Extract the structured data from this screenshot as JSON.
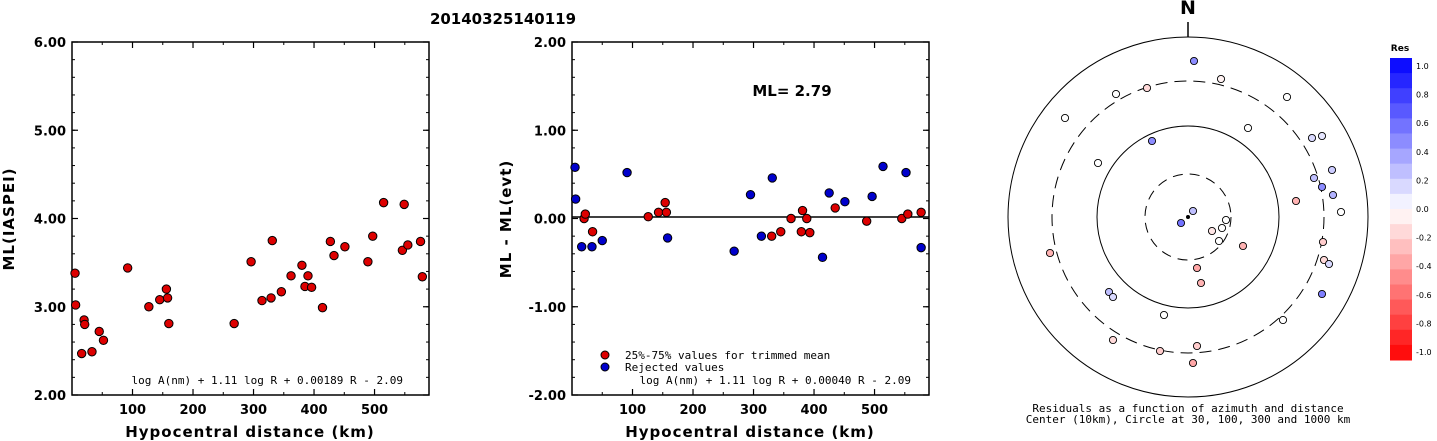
{
  "title": "20140325140119",
  "chart_data": [
    {
      "type": "scatter",
      "xlabel": "Hypocentral distance (km)",
      "ylabel": "ML(IASPEI)",
      "xlim": [
        0,
        590
      ],
      "ylim": [
        2.0,
        6.0
      ],
      "xticks": [
        "100",
        "200",
        "300",
        "400",
        "500"
      ],
      "yticks": [
        "2.00",
        "3.00",
        "4.00",
        "5.00",
        "6.00"
      ],
      "formula": "log A(nm) + 1.11 log R + 0.00189 R - 2.09",
      "points": [
        [
          5,
          3.38
        ],
        [
          6,
          3.02
        ],
        [
          16,
          2.47
        ],
        [
          20,
          2.85
        ],
        [
          21,
          2.8
        ],
        [
          33,
          2.49
        ],
        [
          45,
          2.72
        ],
        [
          52,
          2.62
        ],
        [
          92,
          3.44
        ],
        [
          127,
          3.0
        ],
        [
          145,
          3.08
        ],
        [
          156,
          3.2
        ],
        [
          158,
          3.1
        ],
        [
          160,
          2.81
        ],
        [
          268,
          2.81
        ],
        [
          296,
          3.51
        ],
        [
          314,
          3.07
        ],
        [
          329,
          3.1
        ],
        [
          331,
          3.75
        ],
        [
          346,
          3.17
        ],
        [
          362,
          3.35
        ],
        [
          380,
          3.47
        ],
        [
          385,
          3.23
        ],
        [
          390,
          3.35
        ],
        [
          396,
          3.22
        ],
        [
          414,
          2.99
        ],
        [
          427,
          3.74
        ],
        [
          433,
          3.58
        ],
        [
          451,
          3.68
        ],
        [
          489,
          3.51
        ],
        [
          497,
          3.8
        ],
        [
          515,
          4.18
        ],
        [
          546,
          3.64
        ],
        [
          549,
          4.16
        ],
        [
          555,
          3.7
        ],
        [
          576,
          3.74
        ],
        [
          579,
          3.34
        ]
      ]
    },
    {
      "type": "scatter",
      "xlabel": "Hypocentral distance (km)",
      "ylabel": "ML - ML(evt)",
      "xlim": [
        0,
        590
      ],
      "ylim": [
        -2.0,
        2.0
      ],
      "xticks": [
        "100",
        "200",
        "300",
        "400",
        "500"
      ],
      "yticks": [
        "-2.00",
        "-1.00",
        "0.00",
        "1.00",
        "2.00"
      ],
      "ml_label": "ML= 2.79",
      "formula": "log A(nm) + 1.11 log R + 0.00040 R - 2.09",
      "legend": [
        "25%-75% values for trimmed mean",
        "Rejected values"
      ],
      "series": [
        {
          "name": "25%-75% values for trimmed mean",
          "color": "#dd0000",
          "points": [
            [
              20,
              0.0
            ],
            [
              22,
              0.05
            ],
            [
              34,
              -0.15
            ],
            [
              126,
              0.02
            ],
            [
              143,
              0.07
            ],
            [
              154,
              0.18
            ],
            [
              156,
              0.07
            ],
            [
              330,
              -0.2
            ],
            [
              345,
              -0.15
            ],
            [
              362,
              0.0
            ],
            [
              379,
              -0.15
            ],
            [
              381,
              0.09
            ],
            [
              388,
              0.0
            ],
            [
              393,
              -0.16
            ],
            [
              435,
              0.12
            ],
            [
              487,
              -0.03
            ],
            [
              545,
              0.0
            ],
            [
              555,
              0.05
            ],
            [
              577,
              0.07
            ]
          ]
        },
        {
          "name": "Rejected values",
          "color": "#0000cc",
          "points": [
            [
              5,
              0.58
            ],
            [
              6,
              0.22
            ],
            [
              16,
              -0.32
            ],
            [
              33,
              -0.32
            ],
            [
              50,
              -0.25
            ],
            [
              91,
              0.52
            ],
            [
              158,
              -0.22
            ],
            [
              268,
              -0.37
            ],
            [
              295,
              0.27
            ],
            [
              313,
              -0.2
            ],
            [
              331,
              0.46
            ],
            [
              425,
              0.29
            ],
            [
              414,
              -0.44
            ],
            [
              451,
              0.19
            ],
            [
              496,
              0.25
            ],
            [
              514,
              0.59
            ],
            [
              552,
              0.52
            ],
            [
              577,
              -0.33
            ]
          ]
        }
      ]
    }
  ],
  "polar": {
    "north_label": "N",
    "caption_line1": "Residuals as a function of azimuth and distance",
    "caption_line2": "Center (10km), Circle at 30, 100, 300 and 1000 km",
    "stations": [
      [
        1194,
        61,
        0.45
      ],
      [
        1221,
        79,
        -0.05
      ],
      [
        1147,
        88,
        -0.15
      ],
      [
        1116,
        94,
        0.0
      ],
      [
        1287,
        97,
        0.0
      ],
      [
        1065,
        118,
        0.0
      ],
      [
        1248,
        128,
        0.0
      ],
      [
        1312,
        138,
        0.15
      ],
      [
        1322,
        136,
        0.1
      ],
      [
        1152,
        141,
        0.45
      ],
      [
        1098,
        163,
        0.0
      ],
      [
        1332,
        170,
        0.2
      ],
      [
        1314,
        178,
        0.25
      ],
      [
        1322,
        187,
        0.45
      ],
      [
        1333,
        195,
        0.3
      ],
      [
        1296,
        201,
        -0.3
      ],
      [
        1341,
        212,
        0.0
      ],
      [
        1193,
        211,
        0.25
      ],
      [
        1181,
        223,
        0.55
      ],
      [
        1226,
        220,
        0.0
      ],
      [
        1222,
        228,
        0.0
      ],
      [
        1212,
        231,
        -0.1
      ],
      [
        1219,
        241,
        0.0
      ],
      [
        1243,
        246,
        -0.3
      ],
      [
        1323,
        242,
        -0.2
      ],
      [
        1050,
        253,
        -0.3
      ],
      [
        1324,
        260,
        -0.15
      ],
      [
        1329,
        264,
        0.15
      ],
      [
        1197,
        268,
        -0.35
      ],
      [
        1201,
        283,
        -0.3
      ],
      [
        1322,
        294,
        0.5
      ],
      [
        1109,
        292,
        0.25
      ],
      [
        1113,
        297,
        0.15
      ],
      [
        1164,
        315,
        0.0
      ],
      [
        1283,
        320,
        0.0
      ],
      [
        1113,
        340,
        -0.15
      ],
      [
        1160,
        351,
        -0.2
      ],
      [
        1197,
        346,
        -0.2
      ],
      [
        1193,
        363,
        -0.35
      ]
    ]
  },
  "colorbar": {
    "title": "Res",
    "labels": [
      "1.0",
      "0.8",
      "0.6",
      "0.4",
      "0.2",
      "0.0",
      "-0.2",
      "-0.4",
      "-0.6",
      "-0.8",
      "-1.0"
    ]
  }
}
